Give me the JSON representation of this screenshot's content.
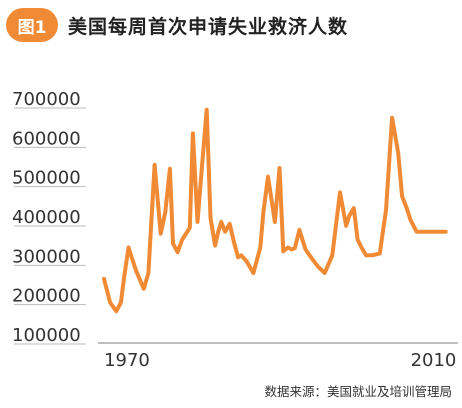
{
  "header": {
    "badge": "图1",
    "title": "美国每周首次申请失业救济人数"
  },
  "source": "数据来源：美国就业及培训管理局",
  "colors": {
    "accent": "#f08a35",
    "line": "#f08a35",
    "text": "#222222",
    "axis": "#999999",
    "grid": "#bbbbbb"
  },
  "chart_data": {
    "type": "line",
    "title": "美国每周首次申请失业救济人数",
    "xlabel": "",
    "ylabel": "",
    "x_ticks": [
      "1970",
      "2010"
    ],
    "y_ticks": [
      "100000",
      "200000",
      "300000",
      "400000",
      "500000",
      "600000",
      "700000"
    ],
    "xlim": [
      1967,
      2013.2
    ],
    "ylim": [
      100000,
      700000
    ],
    "grid": "horizontal tick marks",
    "legend": "none",
    "series": [
      {
        "color": "#f08a35",
        "x": [
          1967.0,
          1967.8,
          1968.6,
          1969.2,
          1969.6,
          1970.2,
          1971.2,
          1972.2,
          1972.8,
          1973.6,
          1974.4,
          1975.0,
          1975.6,
          1976.0,
          1976.6,
          1977.2,
          1978.2,
          1978.6,
          1979.2,
          1979.8,
          1980.4,
          1980.9,
          1981.5,
          1981.9,
          1982.3,
          1982.8,
          1983.4,
          1984.0,
          1984.5,
          1984.9,
          1985.6,
          1986.5,
          1987.4,
          1987.8,
          1988.4,
          1989.3,
          1989.9,
          1990.4,
          1991.0,
          1991.5,
          1991.9,
          1992.5,
          1993.3,
          1994.2,
          1995.0,
          1995.8,
          1996.8,
          1997.8,
          1998.6,
          1999.0,
          1999.6,
          2000.1,
          2000.6,
          2001.2,
          2002.0,
          2003.0,
          2003.8,
          2004.6,
          2005.4,
          2005.9,
          2006.5,
          2007.0,
          2007.8,
          2008.6,
          2009.2,
          2010.0,
          2010.8,
          2011.6
        ],
        "values": [
          240000,
          180000,
          158000,
          180000,
          240000,
          320000,
          260000,
          215000,
          255000,
          530000,
          355000,
          410000,
          520000,
          330000,
          308000,
          340000,
          370000,
          610000,
          385000,
          530000,
          670000,
          395000,
          325000,
          360000,
          385000,
          360000,
          380000,
          330000,
          295000,
          300000,
          285000,
          255000,
          320000,
          410000,
          500000,
          385000,
          522000,
          310000,
          320000,
          315000,
          318000,
          365000,
          315000,
          290000,
          270000,
          255000,
          300000,
          460000,
          375000,
          400000,
          420000,
          340000,
          320000,
          300000,
          300000,
          305000,
          415000,
          650000,
          560000,
          450000,
          420000,
          390000,
          360000,
          360000,
          360000,
          360000,
          360000,
          360000
        ]
      }
    ]
  }
}
